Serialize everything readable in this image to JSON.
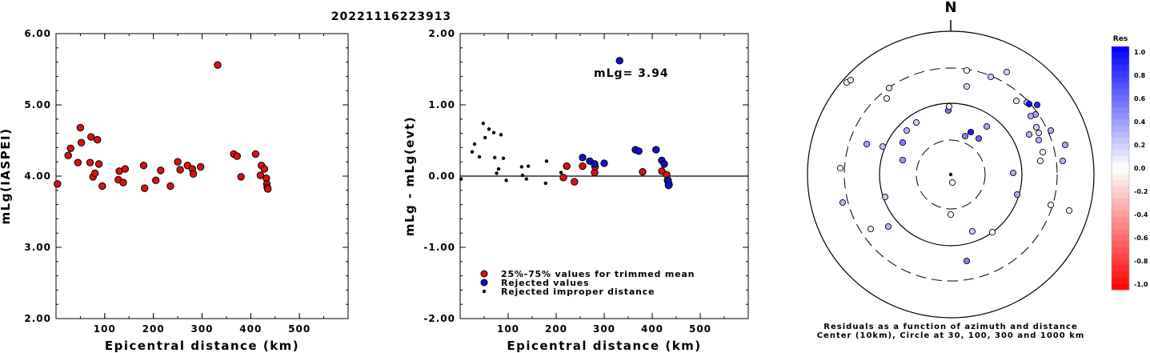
{
  "title": "20221116223913",
  "chart_data": [
    {
      "type": "scatter",
      "name": "mLg vs distance",
      "xlabel": "Epicentral distance (km)",
      "ylabel": "mLg(IASPEI)",
      "xlim": [
        0,
        600
      ],
      "ylim": [
        2.0,
        6.0
      ],
      "xticks": [
        100,
        200,
        300,
        400,
        500
      ],
      "yticks": [
        "2.00",
        "3.00",
        "4.00",
        "5.00",
        "6.00"
      ],
      "marker_color": "#dd1111",
      "points": [
        [
          3,
          3.89
        ],
        [
          25,
          4.29
        ],
        [
          30,
          4.39
        ],
        [
          45,
          4.19
        ],
        [
          50,
          4.68
        ],
        [
          52,
          4.47
        ],
        [
          70,
          4.19
        ],
        [
          72,
          4.55
        ],
        [
          76,
          3.99
        ],
        [
          80,
          4.04
        ],
        [
          85,
          4.51
        ],
        [
          88,
          4.17
        ],
        [
          95,
          3.86
        ],
        [
          128,
          3.95
        ],
        [
          130,
          4.07
        ],
        [
          138,
          3.91
        ],
        [
          142,
          4.1
        ],
        [
          180,
          4.15
        ],
        [
          182,
          3.83
        ],
        [
          205,
          3.94
        ],
        [
          215,
          4.08
        ],
        [
          235,
          3.86
        ],
        [
          250,
          4.2
        ],
        [
          255,
          4.09
        ],
        [
          270,
          4.15
        ],
        [
          280,
          4.1
        ],
        [
          282,
          4.03
        ],
        [
          297,
          4.13
        ],
        [
          332,
          5.56
        ],
        [
          365,
          4.31
        ],
        [
          372,
          4.28
        ],
        [
          380,
          3.99
        ],
        [
          410,
          4.31
        ],
        [
          420,
          4.01
        ],
        [
          422,
          4.15
        ],
        [
          428,
          4.1
        ],
        [
          432,
          3.97
        ],
        [
          433,
          3.89
        ],
        [
          434,
          3.84
        ],
        [
          435,
          3.82
        ]
      ]
    },
    {
      "type": "scatter",
      "name": "residuals vs distance",
      "xlabel": "Epicentral distance (km)",
      "ylabel": "mLg - mLg(evt)",
      "xlim": [
        0,
        600
      ],
      "ylim": [
        -2.0,
        2.0
      ],
      "xticks": [
        100,
        200,
        300,
        400,
        500
      ],
      "yticks": [
        "-2.00",
        "-1.00",
        "0.00",
        "1.00",
        "2.00"
      ],
      "annotation": "mLg= 3.94",
      "legend": [
        {
          "label": "25%-75% values for trimmed mean",
          "color": "#dd1111",
          "kind": "big"
        },
        {
          "label": "Rejected values",
          "color": "#1111cc",
          "kind": "big"
        },
        {
          "label": "Rejected improper distance",
          "color": "#000000",
          "kind": "small"
        }
      ],
      "trimmed": [
        [
          215,
          -0.02
        ],
        [
          222,
          0.14
        ],
        [
          238,
          -0.08
        ],
        [
          255,
          0.14
        ],
        [
          280,
          0.05
        ],
        [
          281,
          0.13
        ],
        [
          380,
          0.06
        ],
        [
          420,
          0.07
        ],
        [
          430,
          0.02
        ],
        [
          432,
          -0.06
        ],
        [
          434,
          -0.1
        ],
        [
          435,
          -0.12
        ]
      ],
      "rejected": [
        [
          255,
          0.26
        ],
        [
          270,
          0.21
        ],
        [
          280,
          0.17
        ],
        [
          300,
          0.18
        ],
        [
          332,
          1.62
        ],
        [
          365,
          0.37
        ],
        [
          372,
          0.35
        ],
        [
          408,
          0.37
        ],
        [
          420,
          0.22
        ],
        [
          425,
          0.17
        ],
        [
          433,
          -0.06
        ],
        [
          434,
          -0.13
        ]
      ],
      "improper": [
        [
          2,
          -0.04
        ],
        [
          25,
          0.34
        ],
        [
          30,
          0.45
        ],
        [
          40,
          0.27
        ],
        [
          48,
          0.74
        ],
        [
          52,
          0.54
        ],
        [
          60,
          0.66
        ],
        [
          70,
          0.61
        ],
        [
          72,
          0.26
        ],
        [
          76,
          0.04
        ],
        [
          80,
          0.1
        ],
        [
          85,
          0.58
        ],
        [
          90,
          0.25
        ],
        [
          96,
          -0.06
        ],
        [
          128,
          0.13
        ],
        [
          130,
          0.01
        ],
        [
          138,
          -0.04
        ],
        [
          142,
          0.14
        ],
        [
          178,
          -0.1
        ],
        [
          180,
          0.21
        ],
        [
          210,
          0.05
        ]
      ]
    },
    {
      "type": "scatter",
      "name": "azimuthal residuals",
      "north_label": "N",
      "caption_line1": "Residuals as a function of azimuth and distance",
      "caption_line2": "Center (10km), Circle at 30, 100, 300 and 1000 km",
      "colorbar_title": "Res",
      "colorbar_ticks": [
        "1.0",
        "0.8",
        "0.6",
        "0.4",
        "0.2",
        "0.0",
        "-0.2",
        "-0.4",
        "-0.6",
        "-0.8",
        "-1.0"
      ],
      "points": [
        [
          -130,
          -115,
          0.05
        ],
        [
          -125,
          -118,
          0.0
        ],
        [
          -80,
          -95,
          0.05
        ],
        [
          -105,
          -38,
          0.35
        ],
        [
          -135,
          35,
          0.3
        ],
        [
          -78,
          65,
          0.3
        ],
        [
          0,
          50,
          0.0
        ],
        [
          27,
          71,
          0.2
        ],
        [
          0,
          0,
          0.0
        ],
        [
          2,
          10,
          0.0
        ],
        [
          -60,
          -18,
          0.4
        ],
        [
          -77,
          -108,
          0.1
        ],
        [
          -3,
          -80,
          0.55
        ],
        [
          -2,
          -85,
          0.0
        ],
        [
          25,
          -53,
          0.9
        ],
        [
          35,
          -45,
          0.6
        ],
        [
          45,
          -60,
          0.35
        ],
        [
          50,
          -122,
          0.2
        ],
        [
          70,
          -128,
          0.2
        ],
        [
          82,
          -92,
          0.1
        ],
        [
          20,
          -110,
          0.15
        ],
        [
          18,
          -48,
          0.5
        ],
        [
          20,
          -130,
          0.0
        ],
        [
          78,
          -2,
          0.35
        ],
        [
          95,
          -90,
          0.3
        ],
        [
          98,
          -88,
          1.0
        ],
        [
          106,
          -75,
          0.35
        ],
        [
          100,
          -73,
          0.3
        ],
        [
          108,
          -87,
          0.85
        ],
        [
          107,
          -59,
          0.2
        ],
        [
          98,
          -50,
          0.3
        ],
        [
          110,
          -52,
          0.15
        ],
        [
          110,
          -43,
          0.3
        ],
        [
          125,
          -55,
          0.3
        ],
        [
          143,
          -37,
          0.35
        ],
        [
          140,
          -17,
          0.3
        ],
        [
          112,
          -17,
          0.0
        ],
        [
          115,
          -28,
          0.0
        ],
        [
          83,
          25,
          0.35
        ],
        [
          125,
          38,
          0.0
        ],
        [
          148,
          45,
          0.0
        ],
        [
          52,
          72,
          0.0
        ],
        [
          20,
          108,
          0.5
        ],
        [
          -85,
          -35,
          0.25
        ],
        [
          -138,
          -8,
          0.0
        ],
        [
          -82,
          28,
          0.2
        ],
        [
          -100,
          68,
          0.1
        ],
        [
          -55,
          -55,
          0.3
        ],
        [
          -43,
          -65,
          0.2
        ],
        [
          -60,
          -40,
          0.5
        ]
      ]
    }
  ]
}
